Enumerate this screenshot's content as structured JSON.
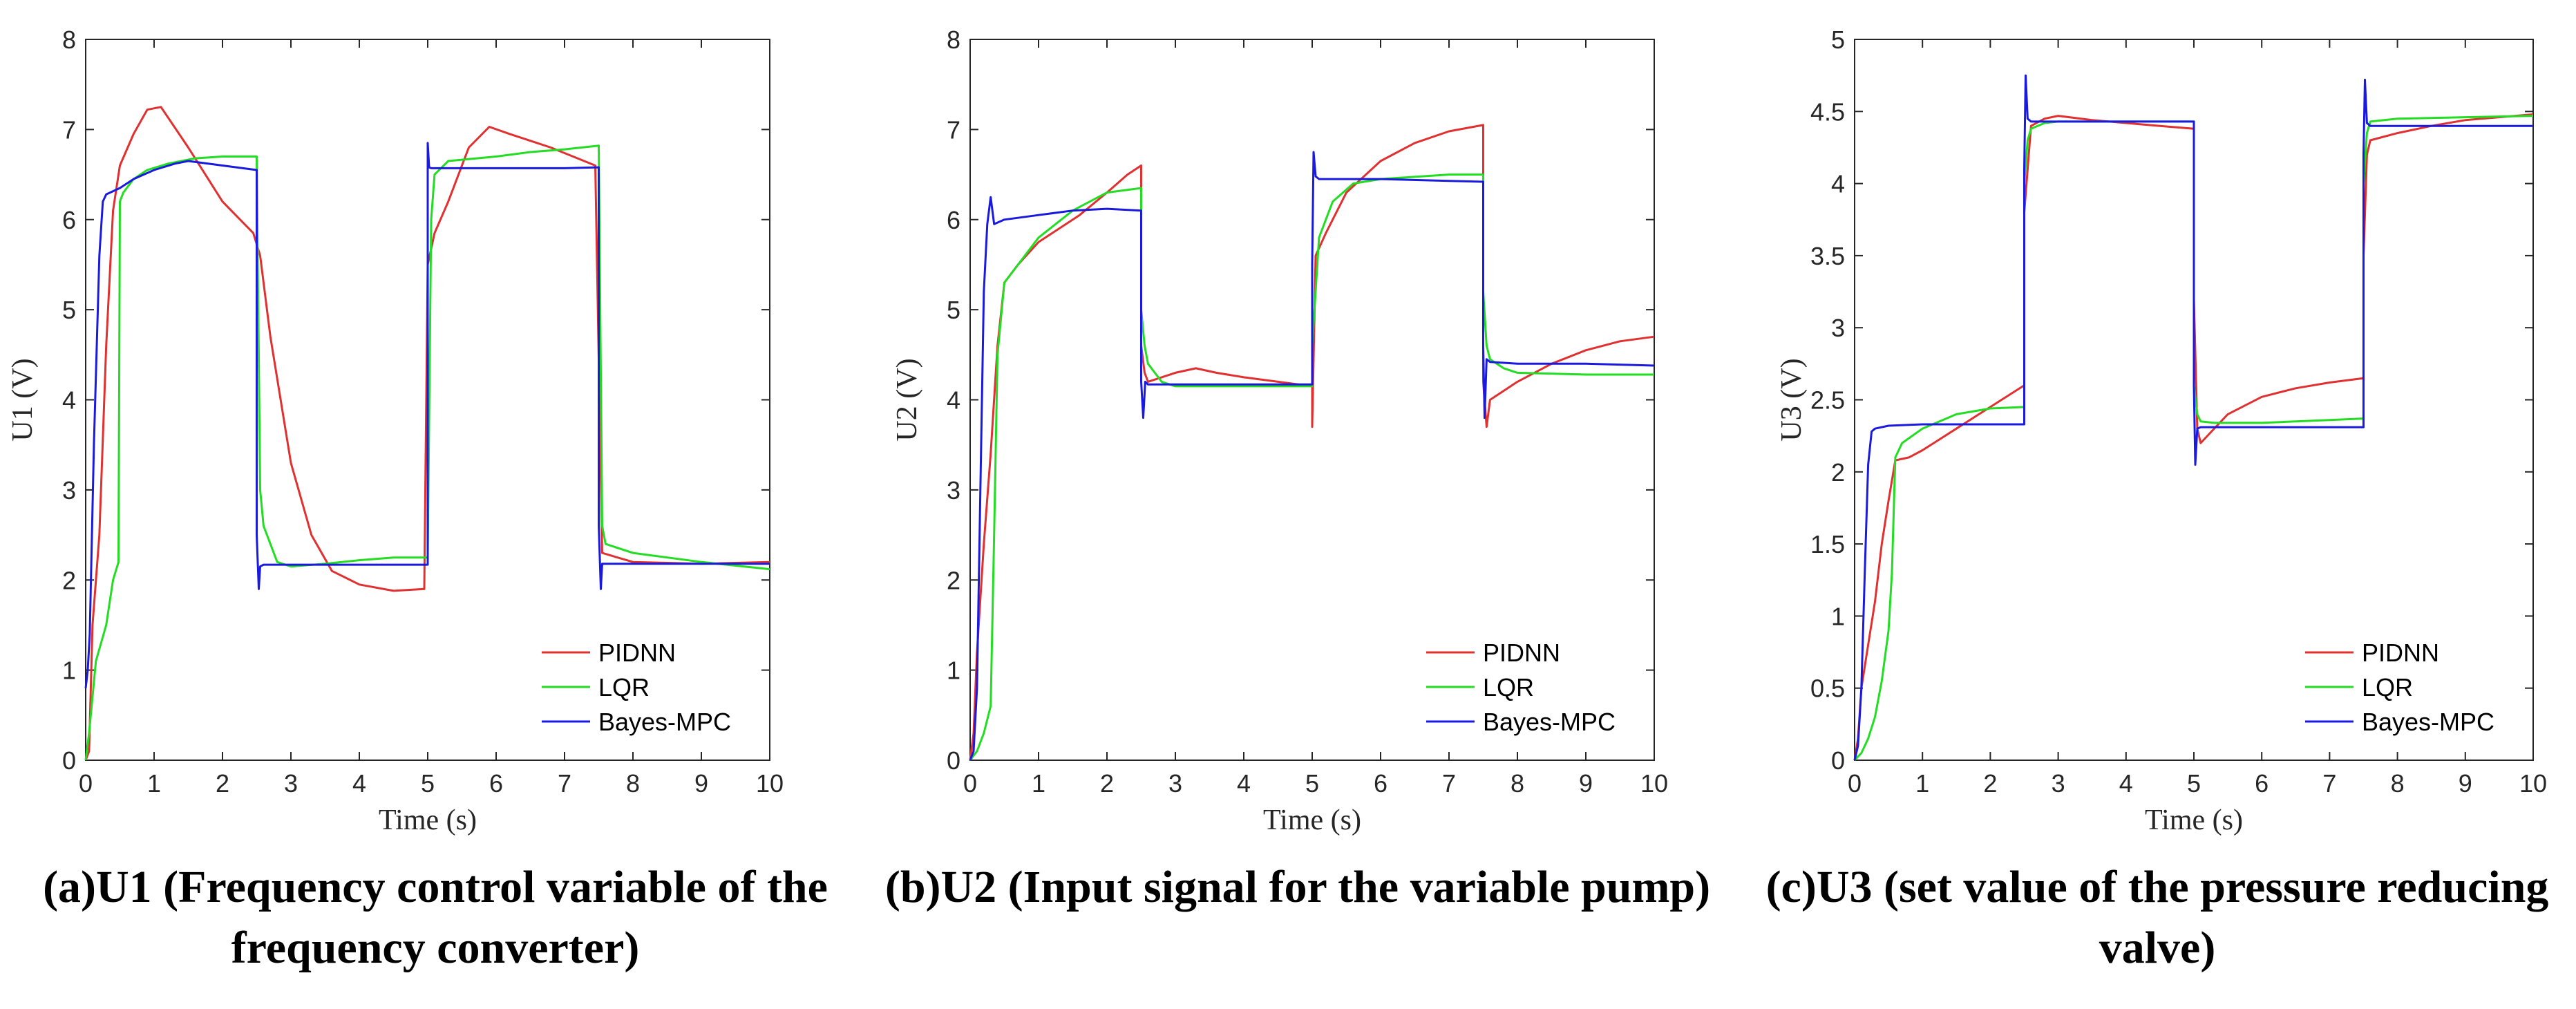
{
  "colors": {
    "PIDNN": "#e03030",
    "LQR": "#22dd22",
    "Bayes-MPC": "#1a1adf",
    "axis": "#262626"
  },
  "chart_data": [
    {
      "type": "line",
      "caption": "(a)U1 (Frequency control variable of the frequency converter)",
      "xlabel": "Time (s)",
      "ylabel": "U1 (V)",
      "xlim": [
        0,
        10
      ],
      "ylim": [
        0,
        8
      ],
      "xticks": [
        0,
        1,
        2,
        3,
        4,
        5,
        6,
        7,
        8,
        9,
        10
      ],
      "yticks": [
        0,
        1,
        2,
        3,
        4,
        5,
        6,
        7,
        8
      ],
      "legend": [
        "PIDNN",
        "LQR",
        "Bayes-MPC"
      ],
      "legend_position": "bottom-right",
      "series": [
        {
          "name": "PIDNN",
          "x": [
            0,
            0.05,
            0.1,
            0.2,
            0.3,
            0.4,
            0.5,
            0.7,
            0.9,
            1.1,
            1.5,
            2.0,
            2.45,
            2.55,
            2.7,
            3.0,
            3.3,
            3.6,
            4.0,
            4.5,
            4.95,
            5.0,
            5.1,
            5.3,
            5.6,
            5.9,
            6.2,
            6.8,
            7.45,
            7.55,
            8.0,
            9.0,
            10.0
          ],
          "y": [
            0,
            0.1,
            1.5,
            2.5,
            4.6,
            6.1,
            6.6,
            6.95,
            7.22,
            7.25,
            6.8,
            6.2,
            5.85,
            5.6,
            4.7,
            3.3,
            2.5,
            2.1,
            1.95,
            1.88,
            1.9,
            5.5,
            5.85,
            6.2,
            6.8,
            7.03,
            6.95,
            6.8,
            6.6,
            2.3,
            2.2,
            2.18,
            2.2
          ]
        },
        {
          "name": "LQR",
          "x": [
            0,
            0.05,
            0.15,
            0.3,
            0.4,
            0.48,
            0.5,
            0.55,
            0.7,
            0.9,
            1.2,
            1.6,
            2.0,
            2.5,
            2.55,
            2.6,
            2.8,
            3.0,
            3.5,
            4.0,
            4.5,
            5.0,
            5.05,
            5.1,
            5.3,
            6.0,
            6.5,
            7.0,
            7.5,
            7.55,
            7.6,
            8.0,
            9.0,
            10.0
          ],
          "y": [
            0,
            0.3,
            1.1,
            1.5,
            2.0,
            2.2,
            6.2,
            6.3,
            6.45,
            6.55,
            6.62,
            6.68,
            6.7,
            6.7,
            3.0,
            2.6,
            2.2,
            2.15,
            2.18,
            2.22,
            2.25,
            2.25,
            6.0,
            6.5,
            6.65,
            6.7,
            6.75,
            6.78,
            6.82,
            2.6,
            2.4,
            2.3,
            2.2,
            2.12
          ]
        },
        {
          "name": "Bayes-MPC",
          "x": [
            0,
            0.03,
            0.06,
            0.12,
            0.2,
            0.25,
            0.3,
            0.5,
            0.7,
            1.0,
            1.3,
            1.5,
            2.0,
            2.5,
            2.5,
            2.53,
            2.55,
            2.6,
            3.0,
            3.5,
            4.0,
            4.5,
            5.0,
            5.0,
            5.02,
            5.05,
            5.2,
            6.0,
            7.0,
            7.5,
            7.5,
            7.53,
            7.55,
            7.6,
            8.0,
            9.0,
            10.0
          ],
          "y": [
            0.8,
            1.0,
            1.4,
            3.5,
            5.6,
            6.2,
            6.28,
            6.35,
            6.45,
            6.55,
            6.62,
            6.65,
            6.6,
            6.55,
            2.5,
            1.9,
            2.15,
            2.17,
            2.17,
            2.17,
            2.17,
            2.17,
            2.17,
            6.85,
            6.58,
            6.57,
            6.57,
            6.57,
            6.57,
            6.58,
            2.6,
            1.9,
            2.18,
            2.18,
            2.18,
            2.18,
            2.18
          ]
        }
      ]
    },
    {
      "type": "line",
      "caption": "(b)U2 (Input signal for the variable pump)",
      "xlabel": "Time (s)",
      "ylabel": "U2 (V)",
      "xlim": [
        0,
        10
      ],
      "ylim": [
        0,
        8
      ],
      "xticks": [
        0,
        1,
        2,
        3,
        4,
        5,
        6,
        7,
        8,
        9,
        10
      ],
      "yticks": [
        0,
        1,
        2,
        3,
        4,
        5,
        6,
        7,
        8
      ],
      "legend": [
        "PIDNN",
        "LQR",
        "Bayes-MPC"
      ],
      "legend_position": "bottom-right",
      "series": [
        {
          "name": "PIDNN",
          "x": [
            0,
            0.05,
            0.1,
            0.2,
            0.3,
            0.4,
            0.5,
            0.7,
            1.0,
            1.3,
            1.6,
            2.0,
            2.3,
            2.5,
            2.5,
            2.55,
            2.6,
            2.8,
            3.0,
            3.3,
            3.6,
            4.0,
            4.5,
            5.0,
            5.0,
            5.05,
            5.2,
            5.5,
            6.0,
            6.5,
            7.0,
            7.5,
            7.5,
            7.55,
            7.6,
            7.8,
            8.0,
            8.5,
            9.0,
            9.5,
            10.0
          ],
          "y": [
            0,
            0.3,
            1.2,
            2.4,
            3.4,
            4.6,
            5.3,
            5.5,
            5.75,
            5.9,
            6.05,
            6.3,
            6.5,
            6.6,
            4.6,
            4.3,
            4.2,
            4.25,
            4.3,
            4.35,
            4.3,
            4.25,
            4.2,
            4.15,
            3.7,
            5.6,
            5.85,
            6.3,
            6.65,
            6.85,
            6.98,
            7.05,
            4.2,
            3.7,
            4.0,
            4.1,
            4.2,
            4.4,
            4.55,
            4.65,
            4.7
          ]
        },
        {
          "name": "LQR",
          "x": [
            0,
            0.1,
            0.2,
            0.3,
            0.35,
            0.4,
            0.5,
            0.7,
            1.0,
            1.5,
            2.0,
            2.5,
            2.5,
            2.55,
            2.6,
            2.8,
            3.0,
            4.0,
            5.0,
            5.0,
            5.1,
            5.3,
            5.6,
            6.0,
            7.0,
            7.5,
            7.5,
            7.55,
            7.6,
            7.8,
            8.0,
            9.0,
            10.0
          ],
          "y": [
            0,
            0.1,
            0.3,
            0.6,
            2.5,
            4.5,
            5.3,
            5.5,
            5.8,
            6.1,
            6.3,
            6.35,
            5.0,
            4.6,
            4.4,
            4.2,
            4.15,
            4.15,
            4.15,
            4.6,
            5.8,
            6.2,
            6.4,
            6.45,
            6.5,
            6.5,
            5.2,
            4.6,
            4.45,
            4.35,
            4.3,
            4.28,
            4.28
          ]
        },
        {
          "name": "Bayes-MPC",
          "x": [
            0,
            0.05,
            0.1,
            0.15,
            0.2,
            0.25,
            0.3,
            0.35,
            0.5,
            1.0,
            1.5,
            2.0,
            2.5,
            2.5,
            2.53,
            2.56,
            2.6,
            3.0,
            4.0,
            5.0,
            5.0,
            5.02,
            5.05,
            5.1,
            6.0,
            7.0,
            7.5,
            7.5,
            7.52,
            7.55,
            7.6,
            8.0,
            9.0,
            10.0
          ],
          "y": [
            0,
            0.1,
            0.8,
            3.0,
            5.2,
            5.95,
            6.25,
            5.95,
            6.0,
            6.05,
            6.1,
            6.12,
            6.1,
            4.2,
            3.8,
            4.2,
            4.17,
            4.17,
            4.17,
            4.17,
            5.5,
            6.75,
            6.48,
            6.45,
            6.45,
            6.43,
            6.42,
            4.6,
            3.8,
            4.45,
            4.42,
            4.4,
            4.4,
            4.38
          ]
        }
      ]
    },
    {
      "type": "line",
      "caption": "(c)U3 (set value of the pressure reducing valve)",
      "xlabel": "Time (s)",
      "ylabel": "U3 (V)",
      "xlim": [
        0,
        10
      ],
      "ylim": [
        0,
        5
      ],
      "xticks": [
        0,
        1,
        2,
        3,
        4,
        5,
        6,
        7,
        8,
        9,
        10
      ],
      "yticks": [
        0,
        0.5,
        1,
        1.5,
        2,
        2.5,
        3,
        3.5,
        4,
        4.5,
        5
      ],
      "legend": [
        "PIDNN",
        "LQR",
        "Bayes-MPC"
      ],
      "legend_position": "bottom-right",
      "series": [
        {
          "name": "PIDNN",
          "x": [
            0,
            0.05,
            0.1,
            0.2,
            0.3,
            0.4,
            0.5,
            0.6,
            0.8,
            1.0,
            1.5,
            2.0,
            2.5,
            2.5,
            2.6,
            2.8,
            3.0,
            3.5,
            4.0,
            4.5,
            5.0,
            5.0,
            5.05,
            5.1,
            5.2,
            5.5,
            6.0,
            6.5,
            7.0,
            7.5,
            7.5,
            7.55,
            7.6,
            8.0,
            8.5,
            9.0,
            9.5,
            10.0
          ],
          "y": [
            0,
            0.15,
            0.5,
            0.8,
            1.1,
            1.5,
            1.8,
            2.08,
            2.1,
            2.15,
            2.3,
            2.45,
            2.6,
            3.8,
            4.4,
            4.45,
            4.47,
            4.44,
            4.42,
            4.4,
            4.38,
            3.2,
            2.3,
            2.2,
            2.25,
            2.4,
            2.52,
            2.58,
            2.62,
            2.65,
            3.5,
            4.2,
            4.3,
            4.35,
            4.4,
            4.44,
            4.46,
            4.48
          ]
        },
        {
          "name": "LQR",
          "x": [
            0,
            0.1,
            0.2,
            0.3,
            0.4,
            0.5,
            0.55,
            0.6,
            0.7,
            1.0,
            1.5,
            2.0,
            2.5,
            2.5,
            2.55,
            2.6,
            2.8,
            3.0,
            4.0,
            5.0,
            5.0,
            5.05,
            5.1,
            5.3,
            6.0,
            7.0,
            7.5,
            7.5,
            7.55,
            7.6,
            8.0,
            9.0,
            10.0
          ],
          "y": [
            0,
            0.05,
            0.15,
            0.3,
            0.55,
            0.9,
            1.3,
            2.1,
            2.2,
            2.3,
            2.4,
            2.44,
            2.45,
            4.0,
            4.3,
            4.38,
            4.42,
            4.43,
            4.43,
            4.43,
            2.6,
            2.4,
            2.35,
            2.34,
            2.34,
            2.36,
            2.37,
            4.0,
            4.35,
            4.43,
            4.45,
            4.46,
            4.47
          ]
        },
        {
          "name": "Bayes-MPC",
          "x": [
            0,
            0.05,
            0.1,
            0.15,
            0.2,
            0.25,
            0.3,
            0.5,
            1.0,
            1.5,
            2.0,
            2.5,
            2.5,
            2.52,
            2.55,
            2.6,
            3.0,
            4.0,
            5.0,
            5.0,
            5.02,
            5.05,
            5.1,
            6.0,
            7.0,
            7.5,
            7.5,
            7.52,
            7.55,
            7.6,
            8.0,
            9.0,
            10.0
          ],
          "y": [
            0,
            0.1,
            0.5,
            1.3,
            2.05,
            2.28,
            2.3,
            2.32,
            2.33,
            2.33,
            2.33,
            2.33,
            4.1,
            4.75,
            4.45,
            4.43,
            4.43,
            4.43,
            4.43,
            2.6,
            2.05,
            2.3,
            2.31,
            2.31,
            2.31,
            2.31,
            4.2,
            4.72,
            4.42,
            4.4,
            4.4,
            4.4,
            4.4
          ]
        }
      ]
    }
  ]
}
